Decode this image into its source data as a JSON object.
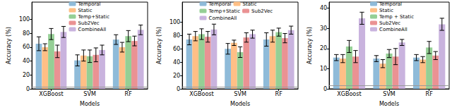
{
  "chart_data": [
    {
      "type": "bar",
      "xlabel": "Models",
      "ylabel": "Accuracy (%)",
      "categories": [
        "XGBoost",
        "SVM",
        "RF"
      ],
      "ylim": [
        0,
        125
      ],
      "yticks": [
        0,
        20,
        40,
        60,
        80,
        100
      ],
      "grid": false,
      "legend": "upper center",
      "hline": 3,
      "series": [
        {
          "name": "Temporal",
          "color": "#8fbbd9",
          "values": [
            65,
            41,
            71
          ],
          "errors": [
            10,
            8,
            7
          ]
        },
        {
          "name": "Static",
          "color": "#ffbf86",
          "values": [
            60,
            48,
            60
          ],
          "errors": [
            5,
            8,
            7
          ]
        },
        {
          "name": "Temp+Static",
          "color": "#95cf95",
          "values": [
            79,
            47,
            76
          ],
          "errors": [
            8,
            9,
            8
          ]
        },
        {
          "name": "Sub2Vec",
          "color": "#ea9293",
          "values": [
            54,
            49,
            69
          ],
          "errors": [
            9,
            10,
            7
          ]
        },
        {
          "name": "CombineAll",
          "color": "#c9b3de",
          "values": [
            82,
            56,
            85
          ],
          "errors": [
            8,
            7,
            7
          ]
        }
      ]
    },
    {
      "type": "bar",
      "xlabel": "Models",
      "ylabel": "Accuracy (%)",
      "categories": [
        "XGBoost",
        "SVM",
        "RF"
      ],
      "ylim": [
        0,
        130
      ],
      "yticks": [
        0,
        20,
        40,
        60,
        80,
        100
      ],
      "grid": false,
      "legend": "upper center",
      "hline": 3,
      "series": [
        {
          "name": "Temporal",
          "color": "#8fbbd9",
          "values": [
            74,
            60,
            74
          ],
          "errors": [
            8,
            8,
            10
          ]
        },
        {
          "name": "Static",
          "color": "#ffbf86",
          "values": [
            79,
            69,
            79
          ],
          "errors": [
            7,
            4,
            9
          ]
        },
        {
          "name": "Temp+Static",
          "color": "#95cf95",
          "values": [
            82,
            55,
            85
          ],
          "errors": [
            8,
            8,
            6
          ]
        },
        {
          "name": "Sub2Vec",
          "color": "#ea9293",
          "values": [
            78,
            77,
            76
          ],
          "errors": [
            8,
            7,
            7
          ]
        },
        {
          "name": "CombineAll",
          "color": "#c9b3de",
          "values": [
            89,
            82,
            88
          ],
          "errors": [
            8,
            6,
            6
          ]
        }
      ]
    },
    {
      "type": "bar",
      "xlabel": "Models",
      "ylabel": "Accuracy (%)",
      "categories": [
        "XGBoost",
        "SVM",
        "RF"
      ],
      "ylim": [
        0,
        43
      ],
      "yticks": [
        0,
        10,
        20,
        30,
        40
      ],
      "grid": false,
      "legend": "upper center",
      "hline": 1.5,
      "series": [
        {
          "name": "Temporal",
          "color": "#8fbbd9",
          "values": [
            15.5,
            15,
            15.5
          ],
          "errors": [
            1.5,
            1.5,
            1.5
          ]
        },
        {
          "name": "Static",
          "color": "#ffbf86",
          "values": [
            15,
            12.5,
            14.5
          ],
          "errors": [
            2,
            2,
            1.5
          ]
        },
        {
          "name": "Temp + Static",
          "color": "#95cf95",
          "values": [
            21,
            17.5,
            20.5
          ],
          "errors": [
            3,
            2,
            3
          ]
        },
        {
          "name": "Sub2Vec",
          "color": "#ea9293",
          "values": [
            16,
            16,
            16.5
          ],
          "errors": [
            3,
            4,
            2
          ]
        },
        {
          "name": "CombineAll",
          "color": "#c9b3de",
          "values": [
            35,
            23,
            32
          ],
          "errors": [
            3,
            1.5,
            3
          ]
        }
      ]
    }
  ]
}
